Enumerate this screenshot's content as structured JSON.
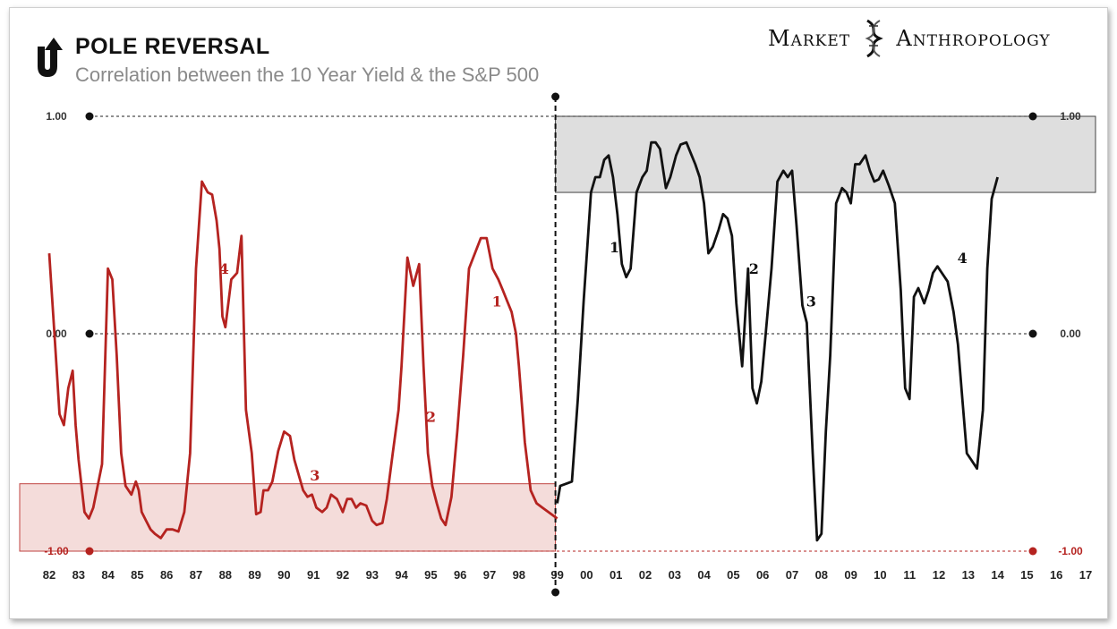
{
  "header": {
    "title": "POLE REVERSAL",
    "subtitle": "Correlation between the 10 Year Yield & the S&P 500",
    "brand_left": "Market",
    "brand_right": "Anthropology",
    "logo_icon": "u-turn-arrow-icon",
    "brand_icon": "dna-helix-icon"
  },
  "colors": {
    "pre": "#b52320",
    "post": "#111111",
    "pre_band": "#f3d6d4",
    "post_band": "#d9d9d9"
  },
  "chart_data": {
    "type": "line",
    "ylim": [
      -1.0,
      1.0
    ],
    "y_ticks": [
      {
        "value": 1.0,
        "label": "1.00"
      },
      {
        "value": 0.0,
        "label": "0.00"
      },
      {
        "value": -1.0,
        "label": "-1.00"
      }
    ],
    "x_ticks": [
      "82",
      "83",
      "84",
      "85",
      "86",
      "87",
      "88",
      "89",
      "90",
      "91",
      "92",
      "93",
      "94",
      "95",
      "96",
      "97",
      "98",
      "99",
      "00",
      "01",
      "02",
      "03",
      "04",
      "05",
      "06",
      "07",
      "08",
      "09",
      "10",
      "11",
      "12",
      "13",
      "14",
      "15",
      "16",
      "17"
    ],
    "regime_split_year": 1999,
    "bands": [
      {
        "series": "1982-1998",
        "x": [
          1982,
          1999
        ],
        "y": [
          -1.0,
          -0.69
        ]
      },
      {
        "series": "1999-2013",
        "x": [
          1999,
          2017.5
        ],
        "y": [
          0.65,
          1.0
        ]
      }
    ],
    "series": [
      {
        "key": "pre",
        "x": [
          1982.0,
          1982.2,
          1982.35,
          1982.5,
          1982.65,
          1982.8,
          1982.9,
          1983.0,
          1983.2,
          1983.35,
          1983.5,
          1983.65,
          1983.8,
          1984.0,
          1984.15,
          1984.3,
          1984.45,
          1984.6,
          1984.8,
          1984.95,
          1985.05,
          1985.15,
          1985.3,
          1985.45,
          1985.6,
          1985.8,
          1986.0,
          1986.2,
          1986.4,
          1986.6,
          1986.8,
          1987.0,
          1987.2,
          1987.4,
          1987.55,
          1987.7,
          1987.8,
          1987.9,
          1988.0,
          1988.2,
          1988.4,
          1988.55,
          1988.7,
          1988.9,
          1989.05,
          1989.2,
          1989.3,
          1989.45,
          1989.6,
          1989.8,
          1990.0,
          1990.2,
          1990.35,
          1990.5,
          1990.65,
          1990.8,
          1990.95,
          1991.1,
          1991.3,
          1991.45,
          1991.6,
          1991.8,
          1992.0,
          1992.15,
          1992.3,
          1992.45,
          1992.6,
          1992.8,
          1993.0,
          1993.15,
          1993.35,
          1993.5,
          1993.7,
          1993.9,
          1994.0,
          1994.2,
          1994.4,
          1994.6,
          1994.75,
          1994.9,
          1995.05,
          1995.2,
          1995.35,
          1995.5,
          1995.7,
          1995.9,
          1996.1,
          1996.3,
          1996.5,
          1996.7,
          1996.9,
          1997.1,
          1997.3,
          1997.45,
          1997.6,
          1997.75,
          1997.9,
          1998.0,
          1998.2,
          1998.4,
          1998.6,
          1998.8,
          1999.0
        ],
        "y": [
          0.37,
          -0.05,
          -0.37,
          -0.42,
          -0.25,
          -0.17,
          -0.42,
          -0.58,
          -0.82,
          -0.85,
          -0.8,
          -0.7,
          -0.6,
          0.3,
          0.25,
          -0.1,
          -0.55,
          -0.7,
          -0.74,
          -0.68,
          -0.72,
          -0.82,
          -0.86,
          -0.9,
          -0.92,
          -0.94,
          -0.9,
          -0.9,
          -0.91,
          -0.82,
          -0.55,
          0.3,
          0.7,
          0.65,
          0.64,
          0.52,
          0.39,
          0.08,
          0.03,
          0.25,
          0.28,
          0.45,
          -0.35,
          -0.55,
          -0.83,
          -0.82,
          -0.72,
          -0.72,
          -0.68,
          -0.54,
          -0.45,
          -0.47,
          -0.58,
          -0.65,
          -0.72,
          -0.75,
          -0.74,
          -0.8,
          -0.82,
          -0.8,
          -0.74,
          -0.76,
          -0.82,
          -0.76,
          -0.76,
          -0.8,
          -0.78,
          -0.79,
          -0.86,
          -0.88,
          -0.87,
          -0.76,
          -0.55,
          -0.35,
          -0.15,
          0.35,
          0.22,
          0.32,
          -0.15,
          -0.55,
          -0.7,
          -0.78,
          -0.85,
          -0.88,
          -0.75,
          -0.45,
          -0.1,
          0.3,
          0.37,
          0.44,
          0.44,
          0.3,
          0.25,
          0.2,
          0.15,
          0.1,
          0.0,
          -0.15,
          -0.5,
          -0.72,
          -0.78,
          -0.8,
          -0.85
        ]
      },
      {
        "key": "post",
        "x": [
          1999.0,
          1999.1,
          1999.3,
          1999.5,
          1999.7,
          1999.9,
          2000.0,
          2000.15,
          2000.3,
          2000.45,
          2000.6,
          2000.75,
          2000.9,
          2001.05,
          2001.2,
          2001.35,
          2001.5,
          2001.7,
          2001.9,
          2002.05,
          2002.2,
          2002.35,
          2002.5,
          2002.7,
          2002.85,
          2003.05,
          2003.2,
          2003.4,
          2003.55,
          2003.7,
          2003.85,
          2004.0,
          2004.15,
          2004.3,
          2004.5,
          2004.65,
          2004.8,
          2004.95,
          2005.1,
          2005.3,
          2005.5,
          2005.65,
          2005.8,
          2005.95,
          2006.1,
          2006.3,
          2006.5,
          2006.7,
          2006.85,
          2007.0,
          2007.15,
          2007.35,
          2007.5,
          2007.7,
          2007.85,
          2008.0,
          2008.15,
          2008.3,
          2008.5,
          2008.7,
          2008.85,
          2009.0,
          2009.15,
          2009.3,
          2009.5,
          2009.65,
          2009.8,
          2009.95,
          2010.1,
          2010.3,
          2010.5,
          2010.7,
          2010.85,
          2011.0,
          2011.15,
          2011.3,
          2011.5,
          2011.65,
          2011.8,
          2011.95,
          2012.1,
          2012.3,
          2012.5,
          2012.65,
          2012.8,
          2012.95,
          2013.1,
          2013.3,
          2013.5,
          2013.65,
          2013.8,
          2014.0
        ],
        "y": [
          -0.78,
          -0.7,
          -0.69,
          -0.68,
          -0.3,
          0.15,
          0.35,
          0.65,
          0.72,
          0.72,
          0.8,
          0.82,
          0.72,
          0.55,
          0.32,
          0.26,
          0.3,
          0.65,
          0.72,
          0.75,
          0.88,
          0.88,
          0.85,
          0.67,
          0.72,
          0.82,
          0.87,
          0.88,
          0.83,
          0.78,
          0.72,
          0.6,
          0.37,
          0.4,
          0.48,
          0.55,
          0.53,
          0.45,
          0.14,
          -0.15,
          0.3,
          -0.25,
          -0.32,
          -0.22,
          0.0,
          0.3,
          0.7,
          0.75,
          0.72,
          0.75,
          0.5,
          0.13,
          0.05,
          -0.55,
          -0.95,
          -0.92,
          -0.45,
          -0.1,
          0.6,
          0.67,
          0.65,
          0.6,
          0.78,
          0.78,
          0.82,
          0.75,
          0.7,
          0.71,
          0.75,
          0.68,
          0.6,
          0.2,
          -0.25,
          -0.3,
          0.17,
          0.21,
          0.14,
          0.2,
          0.28,
          0.31,
          0.28,
          0.24,
          0.1,
          -0.05,
          -0.3,
          -0.55,
          -0.58,
          -0.62,
          -0.35,
          0.3,
          0.62,
          0.72
        ]
      }
    ],
    "annotations": [
      {
        "series": "pre",
        "text": "1",
        "x": 1997.25,
        "y": 0.15
      },
      {
        "series": "pre",
        "text": "2",
        "x": 1995.0,
        "y": -0.38
      },
      {
        "series": "pre",
        "text": "3",
        "x": 1991.05,
        "y": -0.65
      },
      {
        "series": "pre",
        "text": "4",
        "x": 1987.95,
        "y": 0.3
      },
      {
        "series": "post",
        "text": "1",
        "x": 2000.95,
        "y": 0.4
      },
      {
        "series": "post",
        "text": "2",
        "x": 2005.7,
        "y": 0.3
      },
      {
        "series": "post",
        "text": "3",
        "x": 2007.65,
        "y": 0.15
      },
      {
        "series": "post",
        "text": "4",
        "x": 2012.8,
        "y": 0.35
      }
    ]
  }
}
